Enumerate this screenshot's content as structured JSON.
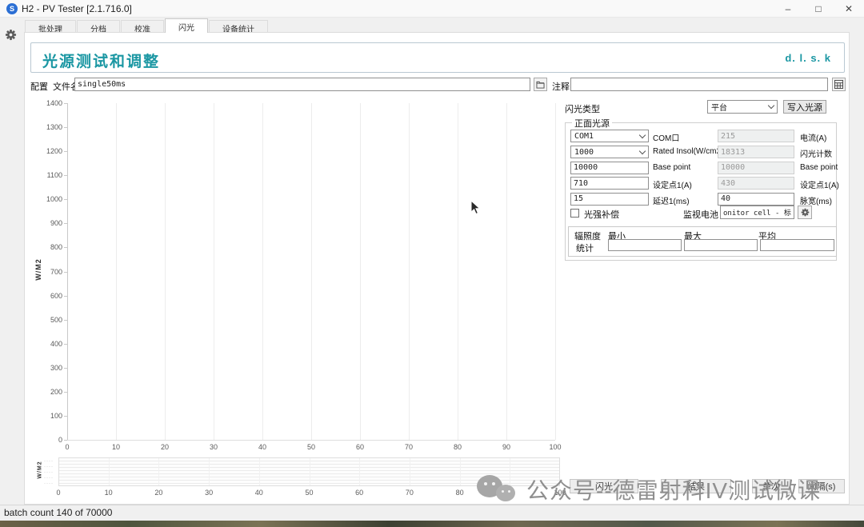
{
  "window": {
    "title": "H2 - PV Tester [2.1.716.0]",
    "app_icon_letter": "S",
    "controls": {
      "minimize": "–",
      "maximize": "□",
      "close": "✕"
    }
  },
  "tabs": [
    {
      "name": "batch",
      "label": "批处理",
      "active": false
    },
    {
      "name": "binning",
      "label": "分档",
      "active": false
    },
    {
      "name": "calibration",
      "label": "校准",
      "active": false
    },
    {
      "name": "flash",
      "label": "闪光",
      "active": true
    },
    {
      "name": "device-stats",
      "label": "设备统计",
      "active": false
    }
  ],
  "header": {
    "title": "光源测试和调整",
    "brand": "d. l. s. k",
    "accent_color": "#1b97a3"
  },
  "config_row": {
    "config_label": "配置",
    "filename_label": "文件名",
    "filename_value": "single50ms",
    "comment_label": "注释",
    "comment_value": ""
  },
  "chart_data": [
    {
      "type": "line",
      "title": "",
      "xlabel": "",
      "ylabel": "W/M2",
      "xlim": [
        0,
        100
      ],
      "ylim": [
        0,
        1400
      ],
      "x_ticks": [
        0,
        10,
        20,
        30,
        40,
        50,
        60,
        70,
        80,
        90,
        100
      ],
      "y_ticks": [
        0,
        100,
        200,
        300,
        400,
        500,
        600,
        700,
        800,
        900,
        1000,
        1100,
        1200,
        1300,
        1400
      ],
      "grid": "vertical",
      "legend": "none",
      "series": []
    },
    {
      "type": "line",
      "title": "",
      "xlabel": "",
      "ylabel": "W/M2",
      "xlim": [
        0,
        100
      ],
      "x_ticks": [
        0,
        10,
        20,
        30,
        40,
        50,
        60,
        70,
        80,
        90,
        100
      ],
      "y_ticks": [],
      "grid": "horizontal-fine",
      "legend": "none",
      "series": []
    }
  ],
  "flash_panel": {
    "type_label": "闪光类型",
    "type_value": "平台",
    "write_button": "写入光源",
    "group_title": "正面光源",
    "rows": [
      {
        "name": "com-port",
        "left": {
          "type": "select",
          "value": "COM1"
        },
        "left_label": "COM口",
        "right": {
          "value": "215",
          "disabled": true
        },
        "right_label": "电流(A)"
      },
      {
        "name": "rated-insol",
        "left": {
          "type": "select",
          "value": "1000"
        },
        "left_label": "Rated Insol(W/cm2)",
        "right": {
          "value": "18313",
          "disabled": true
        },
        "right_label": "闪光计数"
      },
      {
        "name": "base-point",
        "left": {
          "type": "input",
          "value": "10000"
        },
        "left_label": "Base point",
        "right": {
          "value": "10000",
          "disabled": true
        },
        "right_label": "Base point"
      },
      {
        "name": "setpoint1",
        "left": {
          "type": "input",
          "value": "710"
        },
        "left_label": "设定点1(A)",
        "right": {
          "value": "430",
          "disabled": true
        },
        "right_label": "设定点1(A)"
      },
      {
        "name": "delay1",
        "left": {
          "type": "input",
          "value": "15"
        },
        "left_label": "延迟1(ms)",
        "right": {
          "value": "40",
          "disabled": false
        },
        "right_label": "脉宽(ms)"
      }
    ],
    "compensation_checkbox_label": "光强补偿",
    "compensation_checked": false,
    "monitor_label": "监视电池",
    "monitor_value": "onitor cell - 标准电池",
    "stats": {
      "row_label": "辐照度",
      "col_min": "最小",
      "col_max": "最大",
      "col_avg": "平均",
      "stat_label": "统计",
      "values": [
        "",
        "",
        ""
      ]
    }
  },
  "bottom_controls": [
    {
      "name": "flash-run",
      "label": "闪光"
    },
    {
      "name": "result",
      "label": "结果"
    },
    {
      "name": "single",
      "label": "单次"
    },
    {
      "name": "interval",
      "label": "间隔(s)"
    }
  ],
  "watermark": {
    "text": "公众号--德雷射科IV测试微课"
  },
  "status_bar": {
    "text": "batch count 140 of 70000"
  }
}
